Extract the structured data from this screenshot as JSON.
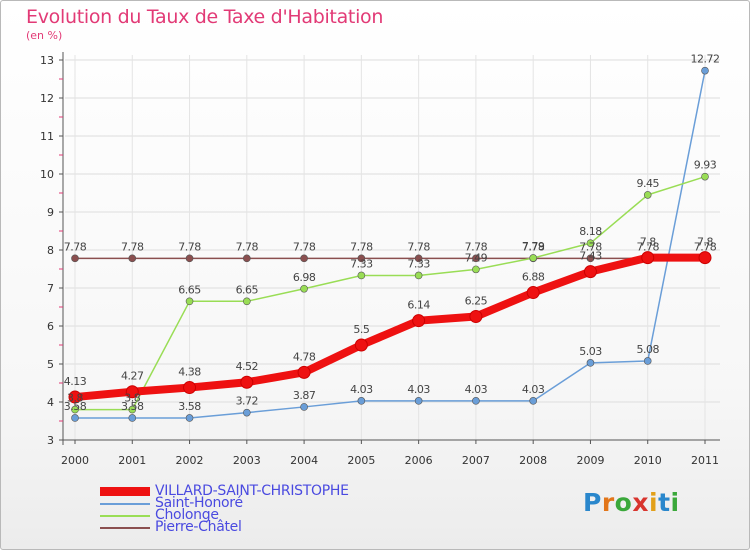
{
  "header": {
    "title": "Evolution du Taux de Taxe d'Habitation",
    "unit": "(en %)"
  },
  "logo": {
    "text": "Proxiti"
  },
  "chart_data": {
    "type": "line",
    "title": "Evolution du Taux de Taxe d'Habitation",
    "ylabel": "(en %)",
    "xlabel": "",
    "x": [
      "2000",
      "2001",
      "2002",
      "2003",
      "2004",
      "2005",
      "2006",
      "2007",
      "2008",
      "2009",
      "2010",
      "2011"
    ],
    "ylim": [
      3,
      13
    ],
    "yticks": [
      3,
      4,
      5,
      6,
      7,
      8,
      9,
      10,
      11,
      12,
      13
    ],
    "legend_position": "bottom-left",
    "series": [
      {
        "name": "VILLARD-SAINT-CHRISTOPHE",
        "color": "#ee1111",
        "values": [
          4.13,
          4.27,
          4.38,
          4.52,
          4.78,
          5.5,
          6.14,
          6.25,
          6.88,
          7.43,
          7.8,
          7.8
        ],
        "labels": [
          "4.13",
          "4.27",
          "4.38",
          "4.52",
          "4.78",
          "5.5",
          "6.14",
          "6.25",
          "6.88",
          "7.43",
          "7.8",
          "7.8"
        ]
      },
      {
        "name": "Saint-Honoré",
        "color": "#6a9ed8",
        "values": [
          3.58,
          3.58,
          3.58,
          3.72,
          3.87,
          4.03,
          4.03,
          4.03,
          4.03,
          5.03,
          5.08,
          12.72
        ],
        "labels": [
          "3.58",
          "3.58",
          "3.58",
          "3.72",
          "3.87",
          "4.03",
          "4.03",
          "4.03",
          "4.03",
          "5.03",
          "5.08",
          "12.72"
        ]
      },
      {
        "name": "Cholonge",
        "color": "#99dd55",
        "values": [
          3.8,
          3.8,
          6.65,
          6.65,
          6.98,
          7.33,
          7.33,
          7.49,
          7.79,
          8.18,
          9.45,
          9.93
        ],
        "labels": [
          "3.8",
          "3.8",
          "6.65",
          "6.65",
          "6.98",
          "7.33",
          "7.33",
          "7.49",
          "7.79",
          "8.18",
          "9.45",
          "9.93"
        ]
      },
      {
        "name": "Pierre-Châtel",
        "color": "#8a4f4f",
        "values": [
          7.78,
          7.78,
          7.78,
          7.78,
          7.78,
          7.78,
          7.78,
          7.78,
          7.78,
          7.78,
          7.78,
          7.78
        ],
        "labels": [
          "7.78",
          "7.78",
          "7.78",
          "7.78",
          "7.78",
          "7.78",
          "7.78",
          "7.78",
          "7.78",
          "7.78",
          "7.78",
          "7.78"
        ]
      }
    ]
  }
}
